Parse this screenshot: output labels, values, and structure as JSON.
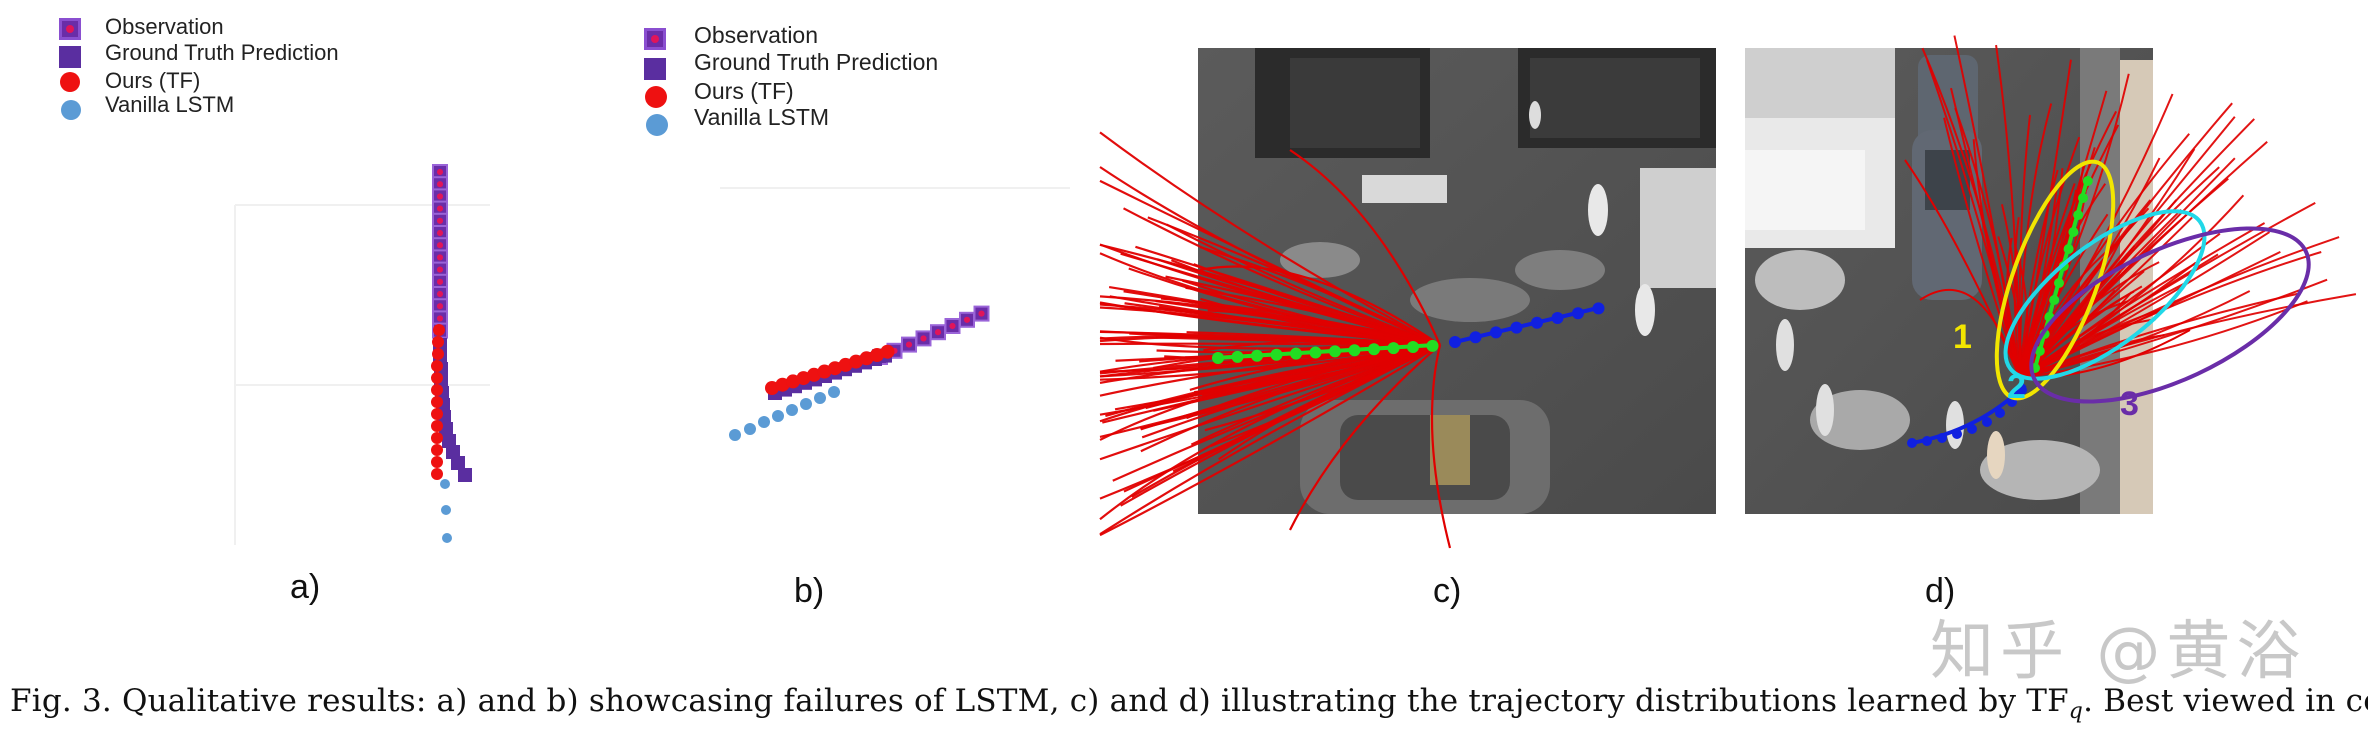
{
  "legend_a": {
    "observation": "Observation",
    "ground_truth": "Ground Truth Prediction",
    "ours": "Ours (TF)",
    "vanilla": "Vanilla LSTM"
  },
  "legend_b": {
    "observation": "Observation",
    "ground_truth": "Ground Truth Prediction",
    "ours": "Ours (TF)",
    "vanilla": "Vanilla LSTM"
  },
  "panels": {
    "a": "a)",
    "b": "b)",
    "c": "c)",
    "d": "d)"
  },
  "overlay_d": {
    "label1": "1",
    "label2": "2",
    "label3": "3"
  },
  "caption": "Fig. 3.  Qualitative results: a) and b) showcasing failures of LSTM, c) and d) illustrating the trajectory distributions learned by TF",
  "caption_sub": "q",
  "caption_tail": ". Best viewed in colors.",
  "watermark": "知乎 @黄浴",
  "colors": {
    "observation": "#6a2da8",
    "ground_truth": "#5a2ea0",
    "ours": "#ee1111",
    "vanilla": "#5b9bd5",
    "trajectory_red": "#e00000",
    "trajectory_green": "#22dd22",
    "trajectory_blue": "#1020e0",
    "ellipse_yellow": "#f2e600",
    "ellipse_cyan": "#22d8e8",
    "ellipse_purple": "#6a2da8"
  }
}
